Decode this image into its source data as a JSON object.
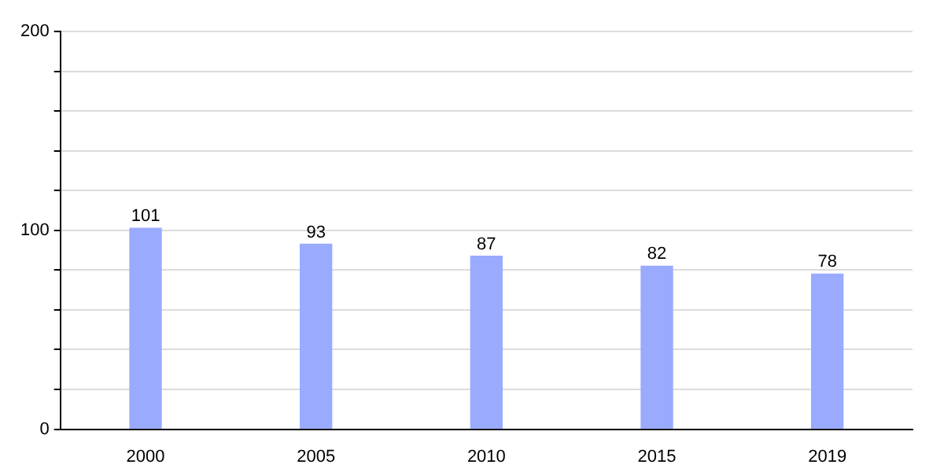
{
  "chart_data": {
    "type": "bar",
    "categories": [
      "2000",
      "2005",
      "2010",
      "2015",
      "2019"
    ],
    "values": [
      101,
      93,
      87,
      82,
      78
    ],
    "color": "#99aaff",
    "ylim": [
      0,
      200
    ],
    "yticks": [
      0,
      {
        "value": 20,
        "label": null
      },
      {
        "value": 40,
        "label": null
      },
      {
        "value": 60,
        "label": null
      },
      {
        "value": 80,
        "label": null
      },
      100,
      {
        "value": 120,
        "label": null
      },
      {
        "value": 140,
        "label": null
      },
      {
        "value": 160,
        "label": null
      },
      {
        "value": 180,
        "label": null
      },
      200
    ],
    "grid": "y",
    "data_labels": true
  }
}
